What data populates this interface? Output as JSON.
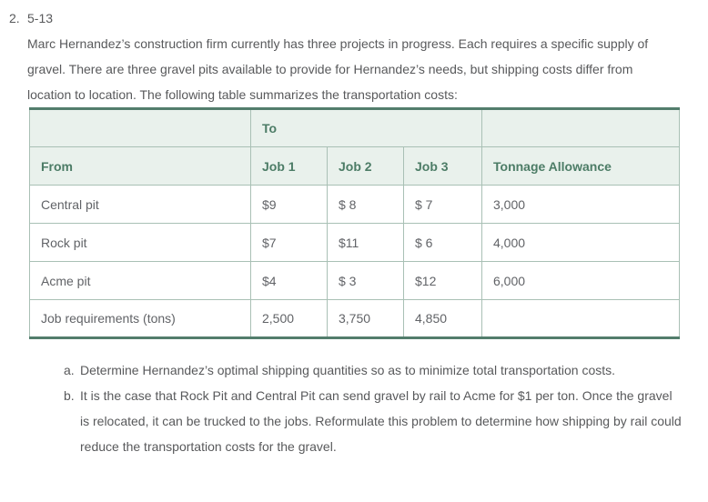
{
  "colors": {
    "header-bg": "#e9f1ec",
    "header-text": "#4c7c66",
    "border-light": "#a9c0b5",
    "border-dark": "#527d6c",
    "body-text": "#58595b",
    "cell-text": "#616367"
  },
  "problem": {
    "marker": "2.",
    "number": "5-13",
    "intro": "Marc Hernandez’s construction firm currently has three projects in progress. Each requires a specific supply of gravel. There are three gravel pits available to provide for Hernandez’s needs, but shipping costs differ from location to location. The following table summarizes the transportation costs:"
  },
  "table": {
    "to_group_header": "To",
    "columns": [
      "From",
      "Job 1",
      "Job 2",
      "Job 3",
      "Tonnage Allowance"
    ],
    "rows": [
      [
        "Central pit",
        "$9",
        "$ 8",
        "$ 7",
        "3,000"
      ],
      [
        "Rock pit",
        "$7",
        "$11",
        "$ 6",
        "4,000"
      ],
      [
        "Acme pit",
        "$4",
        "$ 3",
        "$12",
        "6,000"
      ],
      [
        "Job requirements (tons)",
        "2,500",
        "3,750",
        "4,850",
        ""
      ]
    ]
  },
  "questions": [
    {
      "marker": "a.",
      "text": "Determine Hernandez’s optimal shipping quantities so as to minimize total transportation costs."
    },
    {
      "marker": "b.",
      "text": "It is the case that Rock Pit and Central Pit can send gravel by rail to Acme for $1 per ton. Once the gravel is relocated, it can be trucked to the jobs. Reformulate this problem to determine how shipping by rail could reduce the transportation costs for the gravel."
    }
  ]
}
